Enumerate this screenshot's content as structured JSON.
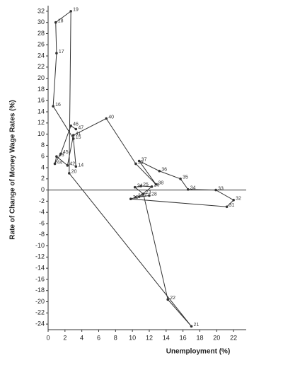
{
  "chart_data": {
    "type": "line",
    "y_label": "Rate of Change of Money Wage Rates (%)",
    "x_label": "Unemployment (%)",
    "xlim": [
      0,
      23.5
    ],
    "xticks": [
      0,
      2,
      4,
      6,
      8,
      10,
      12,
      14,
      16,
      18,
      20,
      22
    ],
    "ylim": [
      -25,
      33
    ],
    "yticks": [
      -24,
      -22,
      -20,
      -18,
      -16,
      -14,
      -12,
      -10,
      -8,
      -6,
      -4,
      -2,
      0,
      2,
      4,
      6,
      8,
      10,
      12,
      14,
      16,
      18,
      20,
      22,
      24,
      26,
      28,
      30,
      32
    ],
    "series": [
      {
        "color": "#333333",
        "labels": [
          "14",
          "15",
          "16",
          "17",
          "18",
          "19",
          "20",
          "21",
          "22",
          "23",
          "24",
          "25",
          "26",
          "27",
          "28",
          "29",
          "30",
          "31",
          "32",
          "33",
          "34",
          "35",
          "36",
          "37",
          "38",
          "39",
          "40",
          "41",
          "42",
          "43",
          "44",
          "45",
          "46",
          "47"
        ],
        "x": [
          3.3,
          3.0,
          0.6,
          1.0,
          0.9,
          2.7,
          2.5,
          17.0,
          14.2,
          11.3,
          10.3,
          11.0,
          12.3,
          10.8,
          12.0,
          10.4,
          9.8,
          21.2,
          22.0,
          19.9,
          16.6,
          15.7,
          13.2,
          10.8,
          12.8,
          10.4,
          6.9,
          3.0,
          2.3,
          1.0,
          0.8,
          1.5,
          2.7,
          3.3
        ],
        "values": [
          4.2,
          9.2,
          15,
          24.5,
          30,
          32,
          3.0,
          -24.4,
          -19.6,
          -0.7,
          0.5,
          0.7,
          0.6,
          -1.2,
          -1.0,
          -1.3,
          -1.6,
          -3.0,
          -1.8,
          0,
          0.1,
          2.0,
          3.4,
          5.2,
          1.0,
          4.7,
          12.8,
          9.8,
          4.4,
          6.0,
          4.7,
          6.5,
          11.5,
          10.9
        ]
      }
    ]
  }
}
